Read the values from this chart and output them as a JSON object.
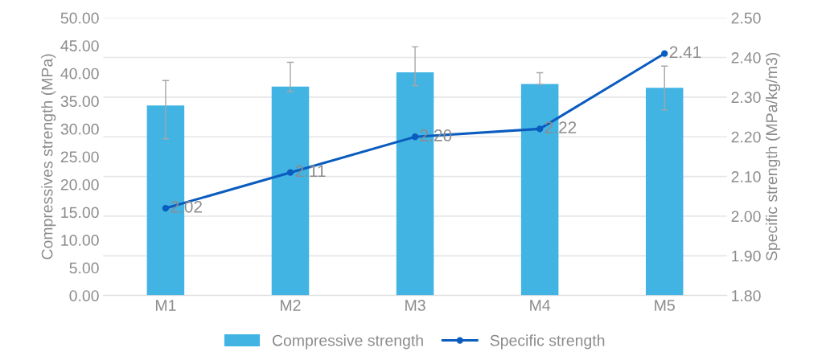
{
  "chart_data": {
    "type": "bar",
    "categories": [
      "M1",
      "M2",
      "M3",
      "M4",
      "M5"
    ],
    "series": [
      {
        "name": "Compressive strength",
        "color": "#41b4e4",
        "values": [
          34.2,
          37.6,
          40.2,
          38.1,
          37.4
        ],
        "errors": [
          [
            28.2,
            38.7
          ],
          [
            36.7,
            42.0
          ],
          [
            37.8,
            44.8
          ],
          [
            38.0,
            40.1
          ],
          [
            33.4,
            41.3
          ]
        ]
      },
      {
        "name": "Specific strength",
        "type": "line",
        "axis": "y2",
        "color": "#0a5cbf",
        "values": [
          2.02,
          2.11,
          2.2,
          2.22,
          2.41
        ],
        "marker": "circle",
        "value_labels": [
          "2.02",
          "2.11",
          "2.20",
          "2.22",
          "2.41"
        ]
      }
    ],
    "ylabel": "Compressives strength (MPa)",
    "y2label": "Specific strength (MPa/kg/m3)",
    "ylim": [
      0,
      50
    ],
    "yticks": [
      {
        "value": 0,
        "label": "0.00"
      },
      {
        "value": 5,
        "label": "5.00"
      },
      {
        "value": 10,
        "label": "10.00"
      },
      {
        "value": 15,
        "label": "15.00"
      },
      {
        "value": 20,
        "label": "20.00"
      },
      {
        "value": 25,
        "label": "25.00"
      },
      {
        "value": 30,
        "label": "30.00"
      },
      {
        "value": 35,
        "label": "35.00"
      },
      {
        "value": 40,
        "label": "40.00"
      },
      {
        "value": 45,
        "label": "45.00"
      },
      {
        "value": 50,
        "label": "50.00"
      }
    ],
    "y2lim": [
      1.8,
      2.5
    ],
    "y2ticks": [
      {
        "value": 1.8,
        "label": "1.80"
      },
      {
        "value": 1.9,
        "label": "1.90"
      },
      {
        "value": 2.0,
        "label": "2.00"
      },
      {
        "value": 2.1,
        "label": "2.10"
      },
      {
        "value": 2.2,
        "label": "2.20"
      },
      {
        "value": 2.3,
        "label": "2.30"
      },
      {
        "value": 2.4,
        "label": "2.40"
      },
      {
        "value": 2.5,
        "label": "2.50"
      }
    ],
    "grid": "y",
    "legend": "bottom"
  }
}
